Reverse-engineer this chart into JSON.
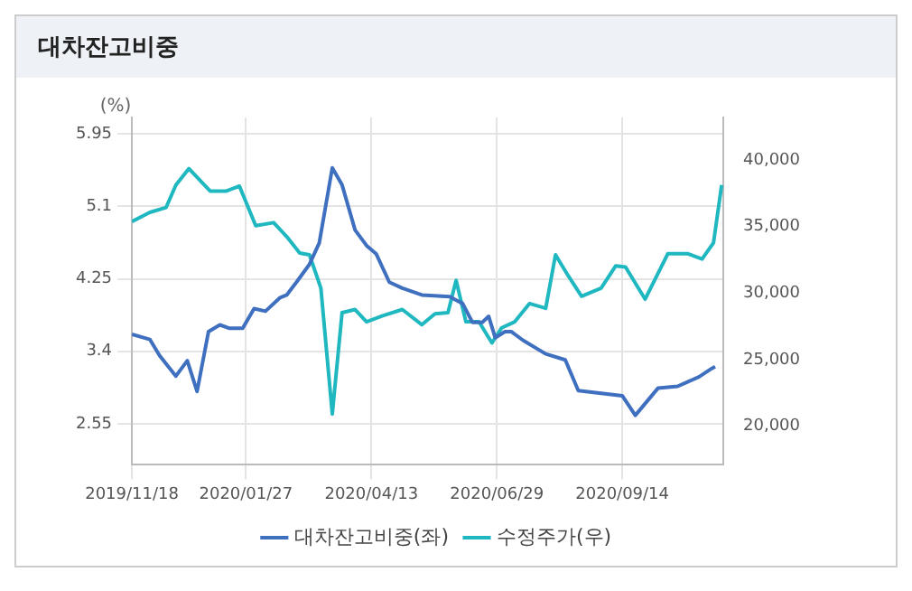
{
  "chart_data": {
    "type": "line",
    "title": "대차잔고비중",
    "ylabel": "(%)",
    "xlim": [
      "2019-11-18",
      "2020-11-15"
    ],
    "xticks": [
      {
        "value": "2019-11-18",
        "label": "2019/11/18"
      },
      {
        "value": "2020-01-27",
        "label": "2020/01/27"
      },
      {
        "value": "2020-04-13",
        "label": "2020/04/13"
      },
      {
        "value": "2020-06-29",
        "label": "2020/06/29"
      },
      {
        "value": "2020-09-14",
        "label": "2020/09/14"
      }
    ],
    "ylim": [
      2.07,
      6.14
    ],
    "yticks": [
      2.55,
      3.4,
      4.25,
      5.1,
      5.95
    ],
    "y2lim": [
      17100,
      43200
    ],
    "y2ticks": [
      {
        "value": 20000,
        "label": "20,000"
      },
      {
        "value": 25000,
        "label": "25,000"
      },
      {
        "value": 30000,
        "label": "30,000"
      },
      {
        "value": 35000,
        "label": "35,000"
      },
      {
        "value": 40000,
        "label": "40,000"
      }
    ],
    "grid": true,
    "legend": "bottom",
    "marker": "none",
    "line_style": "solid",
    "series": [
      {
        "name": "대차잔고비중(좌)",
        "color": "#3f6fbf",
        "x": [
          "2019-11-18",
          "2019-11-29",
          "2019-12-05",
          "2019-12-15",
          "2019-12-22",
          "2019-12-28",
          "2020-01-04",
          "2020-01-11",
          "2020-01-17",
          "2020-01-25",
          "2020-02-01",
          "2020-02-08",
          "2020-02-17",
          "2020-02-21",
          "2020-02-27",
          "2020-03-06",
          "2020-03-12",
          "2020-03-20",
          "2020-03-26",
          "2020-04-03",
          "2020-04-10",
          "2020-04-16",
          "2020-04-24",
          "2020-05-02",
          "2020-05-14",
          "2020-05-31",
          "2020-06-08",
          "2020-06-14",
          "2020-06-20",
          "2020-06-24",
          "2020-06-28",
          "2020-07-04",
          "2020-07-08",
          "2020-07-15",
          "2020-07-29",
          "2020-08-10",
          "2020-08-18",
          "2020-09-14",
          "2020-09-22",
          "2020-10-06",
          "2020-10-18",
          "2020-10-31",
          "2020-11-08",
          "2020-11-10"
        ],
        "values": [
          3.6,
          3.54,
          3.35,
          3.11,
          3.29,
          2.93,
          3.63,
          3.71,
          3.67,
          3.67,
          3.9,
          3.87,
          4.03,
          4.06,
          4.21,
          4.42,
          4.67,
          5.55,
          5.35,
          4.82,
          4.64,
          4.54,
          4.21,
          4.14,
          4.06,
          4.04,
          3.96,
          3.74,
          3.74,
          3.81,
          3.56,
          3.63,
          3.63,
          3.53,
          3.37,
          3.3,
          2.94,
          2.88,
          2.65,
          2.97,
          2.99,
          3.1,
          3.2,
          3.22
        ]
      },
      {
        "name": "수정주가(우)",
        "color": "#20b8c0",
        "axis": "y2",
        "x": [
          "2019-11-18",
          "2019-11-29",
          "2019-12-09",
          "2019-12-15",
          "2019-12-23",
          "2020-01-05",
          "2020-01-15",
          "2020-01-23",
          "2020-02-02",
          "2020-02-13",
          "2020-02-21",
          "2020-02-29",
          "2020-03-06",
          "2020-03-13",
          "2020-03-20",
          "2020-03-26",
          "2020-04-03",
          "2020-04-10",
          "2020-04-20",
          "2020-05-02",
          "2020-05-14",
          "2020-05-22",
          "2020-05-30",
          "2020-06-04",
          "2020-06-10",
          "2020-06-18",
          "2020-06-26",
          "2020-07-02",
          "2020-07-10",
          "2020-07-19",
          "2020-07-29",
          "2020-08-04",
          "2020-08-12",
          "2020-08-20",
          "2020-09-01",
          "2020-09-10",
          "2020-09-16",
          "2020-09-28",
          "2020-10-12",
          "2020-10-24",
          "2020-11-02",
          "2020-11-09",
          "2020-11-14"
        ],
        "values": [
          35380,
          36070,
          36440,
          38120,
          39360,
          37670,
          37670,
          38040,
          35070,
          35300,
          34250,
          33010,
          32880,
          30370,
          20920,
          28530,
          28770,
          27850,
          28310,
          28770,
          27630,
          28450,
          28530,
          30960,
          27850,
          27850,
          26260,
          27400,
          27850,
          29220,
          28860,
          32880,
          31270,
          29770,
          30370,
          32050,
          31960,
          29550,
          32970,
          32970,
          32560,
          33790,
          38120
        ]
      }
    ]
  }
}
